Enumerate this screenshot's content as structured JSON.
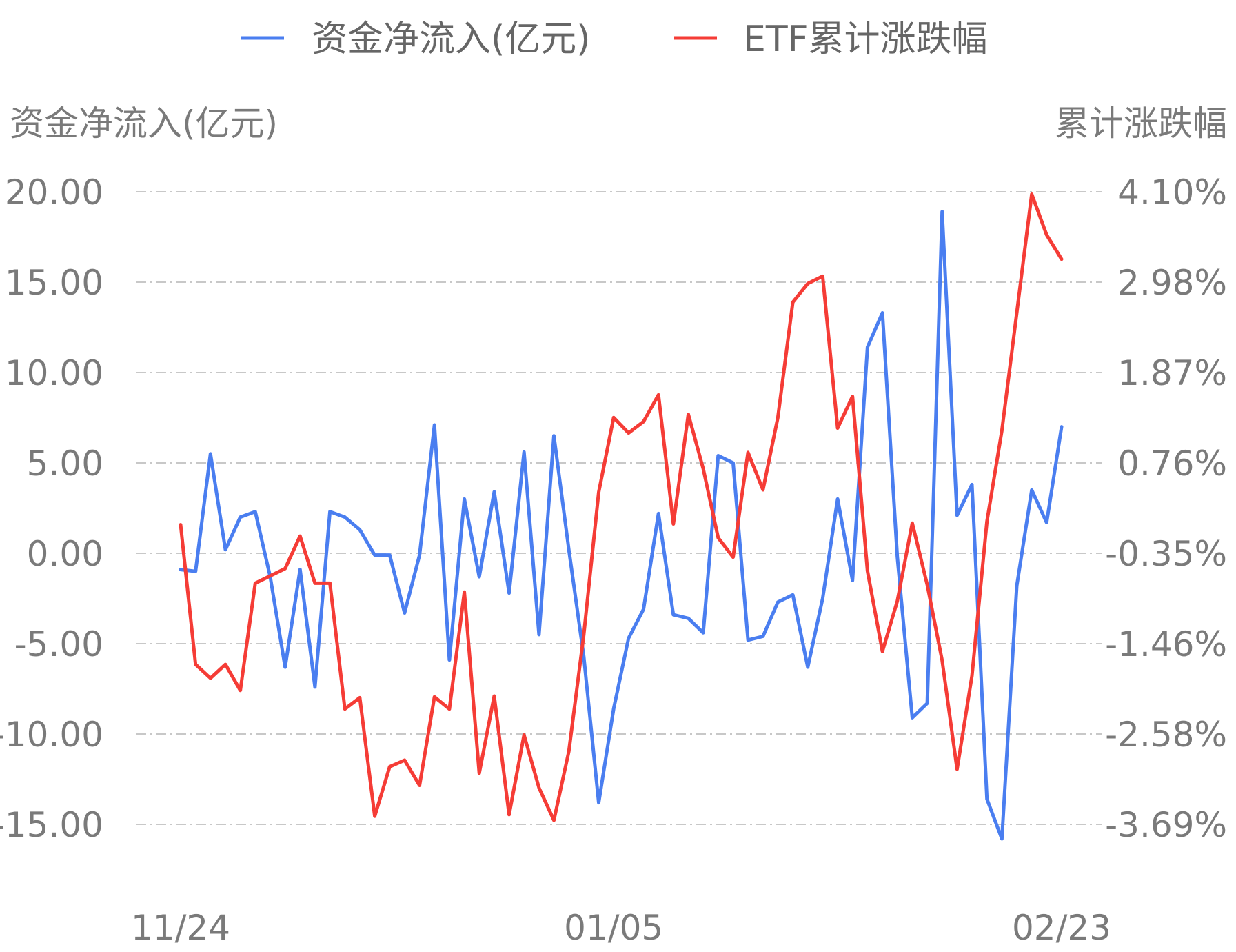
{
  "legend": [
    {
      "label": "资金净流入(亿元)",
      "color": "#4a7ef0"
    },
    {
      "label": "ETF累计涨跌幅",
      "color": "#f53c36"
    }
  ],
  "axes": {
    "left_title": "资金净流入(亿元)",
    "right_title": "累计涨跌幅"
  },
  "chart_data": {
    "type": "line",
    "x_ticks": [
      {
        "label": "11/24",
        "index": 0
      },
      {
        "label": "01/05",
        "index": 29
      },
      {
        "label": "02/23",
        "index": 59
      }
    ],
    "y_left_ticks": [
      "20.00",
      "15.00",
      "10.00",
      "5.00",
      "0.00",
      "-5.00",
      "-10.00",
      "-15.00"
    ],
    "y_left_range": [
      -15,
      20
    ],
    "y_right_ticks": [
      "4.10%",
      "2.98%",
      "1.87%",
      "0.76%",
      "-0.35%",
      "-1.46%",
      "-2.58%",
      "-3.69%"
    ],
    "y_right_range": [
      -3.69,
      4.1
    ],
    "grid": true,
    "legend_position": "top",
    "series": [
      {
        "name": "资金净流入(亿元)",
        "axis": "left",
        "color": "#4a7ef0",
        "values": [
          -0.9,
          -1.0,
          5.5,
          0.2,
          2.0,
          2.3,
          -1.3,
          -6.3,
          -0.9,
          -7.4,
          2.3,
          2.0,
          1.3,
          -0.1,
          -0.1,
          -3.3,
          -0.1,
          7.1,
          -5.9,
          3.0,
          -1.3,
          3.4,
          -2.2,
          5.6,
          -4.5,
          6.5,
          0.2,
          -5.7,
          -13.8,
          -8.6,
          -4.7,
          -3.1,
          2.2,
          -3.4,
          -3.6,
          -4.4,
          5.4,
          5.0,
          -4.8,
          -4.6,
          -2.7,
          -2.3,
          -6.3,
          -2.5,
          3.0,
          -1.5,
          11.4,
          13.3,
          -0.2,
          -9.1,
          -8.3,
          18.9,
          2.1,
          3.8,
          -13.6,
          -15.8,
          -1.8,
          3.5,
          1.7,
          7.0
        ]
      },
      {
        "name": "ETF累计涨跌幅",
        "axis": "right",
        "color": "#f53c36",
        "values": [
          -0.0,
          -1.72,
          -1.89,
          -1.72,
          -2.04,
          -0.72,
          -0.63,
          -0.54,
          -0.14,
          -0.72,
          -0.72,
          -2.27,
          -2.13,
          -3.59,
          -2.98,
          -2.9,
          -3.21,
          -2.12,
          -2.27,
          -0.83,
          -3.06,
          -2.11,
          -3.57,
          -2.59,
          -3.24,
          -3.64,
          -2.79,
          -1.36,
          0.4,
          1.32,
          1.13,
          1.27,
          1.6,
          0.01,
          1.36,
          0.69,
          -0.16,
          -0.4,
          0.89,
          0.43,
          1.32,
          2.74,
          2.97,
          3.06,
          1.19,
          1.58,
          -0.57,
          -1.56,
          -0.94,
          0.02,
          -0.74,
          -1.67,
          -3.01,
          -1.86,
          0.04,
          1.16,
          2.61,
          4.07,
          3.57,
          3.27
        ]
      }
    ]
  }
}
